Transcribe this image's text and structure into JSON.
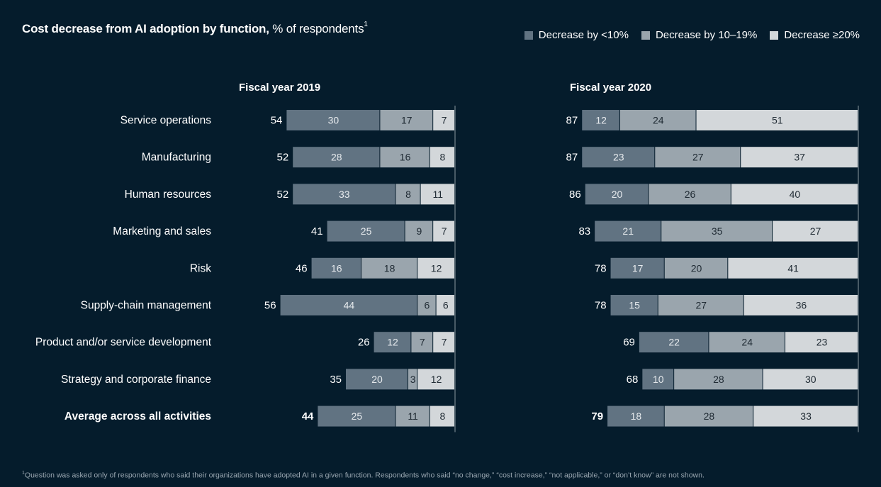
{
  "title_bold": "Cost decrease from AI adoption by function,",
  "title_rest": " % of respondents",
  "title_sup": "1",
  "legend": [
    {
      "label": "Decrease by <10%",
      "color": "#617382"
    },
    {
      "label": "Decrease by 10–19%",
      "color": "#9aa5ad"
    },
    {
      "label": "Decrease  ≥20%",
      "color": "#d3d7da"
    }
  ],
  "footnote_sup": "1",
  "footnote": "Question was asked only of respondents who said their organizations have adopted AI in a given function. Respondents who said “no change,” “cost increase,” “not applicable,” or “don’t know” are not shown.",
  "chart_data": {
    "type": "bar",
    "orientation": "horizontal",
    "stacked": true,
    "categories": [
      "Service operations",
      "Manufacturing",
      "Human resources",
      "Marketing and sales",
      "Risk",
      "Supply-chain management",
      "Product and/or service development",
      "Strategy and corporate finance",
      "Average across all activities"
    ],
    "bold_categories": [
      "Average across all activities"
    ],
    "panels": [
      {
        "title": "Fiscal year 2019",
        "totals": [
          54,
          52,
          52,
          41,
          46,
          56,
          26,
          35,
          44
        ],
        "series": [
          {
            "name": "Decrease by <10%",
            "values": [
              30,
              28,
              33,
              25,
              16,
              44,
              12,
              20,
              25
            ]
          },
          {
            "name": "Decrease by 10–19%",
            "values": [
              17,
              16,
              8,
              9,
              18,
              6,
              7,
              3,
              11
            ]
          },
          {
            "name": "Decrease  ≥20%",
            "values": [
              7,
              8,
              11,
              7,
              12,
              6,
              7,
              12,
              8
            ]
          }
        ]
      },
      {
        "title": "Fiscal year 2020",
        "totals": [
          87,
          87,
          86,
          83,
          78,
          78,
          69,
          68,
          79
        ],
        "series": [
          {
            "name": "Decrease by <10%",
            "values": [
              12,
              23,
              20,
              21,
              17,
              15,
              22,
              10,
              18
            ]
          },
          {
            "name": "Decrease by 10–19%",
            "values": [
              24,
              27,
              26,
              35,
              20,
              27,
              24,
              28,
              28
            ]
          },
          {
            "name": "Decrease  ≥20%",
            "values": [
              51,
              37,
              40,
              27,
              41,
              36,
              23,
              30,
              33
            ]
          }
        ]
      }
    ],
    "legend_position": "top-right",
    "grid": false
  }
}
